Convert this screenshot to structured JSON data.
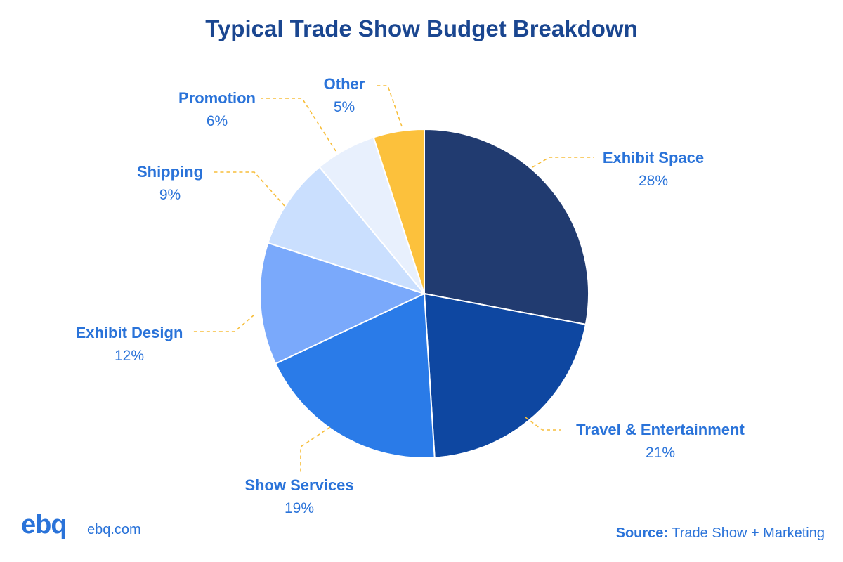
{
  "chart_data": {
    "type": "pie",
    "title": "Typical Trade Show Budget Breakdown",
    "slices": [
      {
        "label": "Exhibit Space",
        "value": 28,
        "display": "28%",
        "color": "#213b70"
      },
      {
        "label": "Travel & Entertainment",
        "value": 21,
        "display": "21%",
        "color": "#0e47a1"
      },
      {
        "label": "Show Services",
        "value": 19,
        "display": "19%",
        "color": "#2a7be8"
      },
      {
        "label": "Exhibit Design",
        "value": 12,
        "display": "12%",
        "color": "#7aa9fb"
      },
      {
        "label": "Shipping",
        "value": 9,
        "display": "9%",
        "color": "#cadffe"
      },
      {
        "label": "Promotion",
        "value": 6,
        "display": "6%",
        "color": "#e8f0fd"
      },
      {
        "label": "Other",
        "value": 5,
        "display": "5%",
        "color": "#fcc13c"
      }
    ],
    "start_angle": "12 o'clock",
    "direction": "clockwise",
    "leader_line_color": "#f7be3b"
  },
  "footer": {
    "logo_text": "ebq",
    "url_text": "ebq.com",
    "source_label": "Source:",
    "source_text": "Trade Show + Marketing"
  },
  "colors": {
    "title": "#1a4690",
    "label": "#2a73d9",
    "background": "#ffffff"
  }
}
